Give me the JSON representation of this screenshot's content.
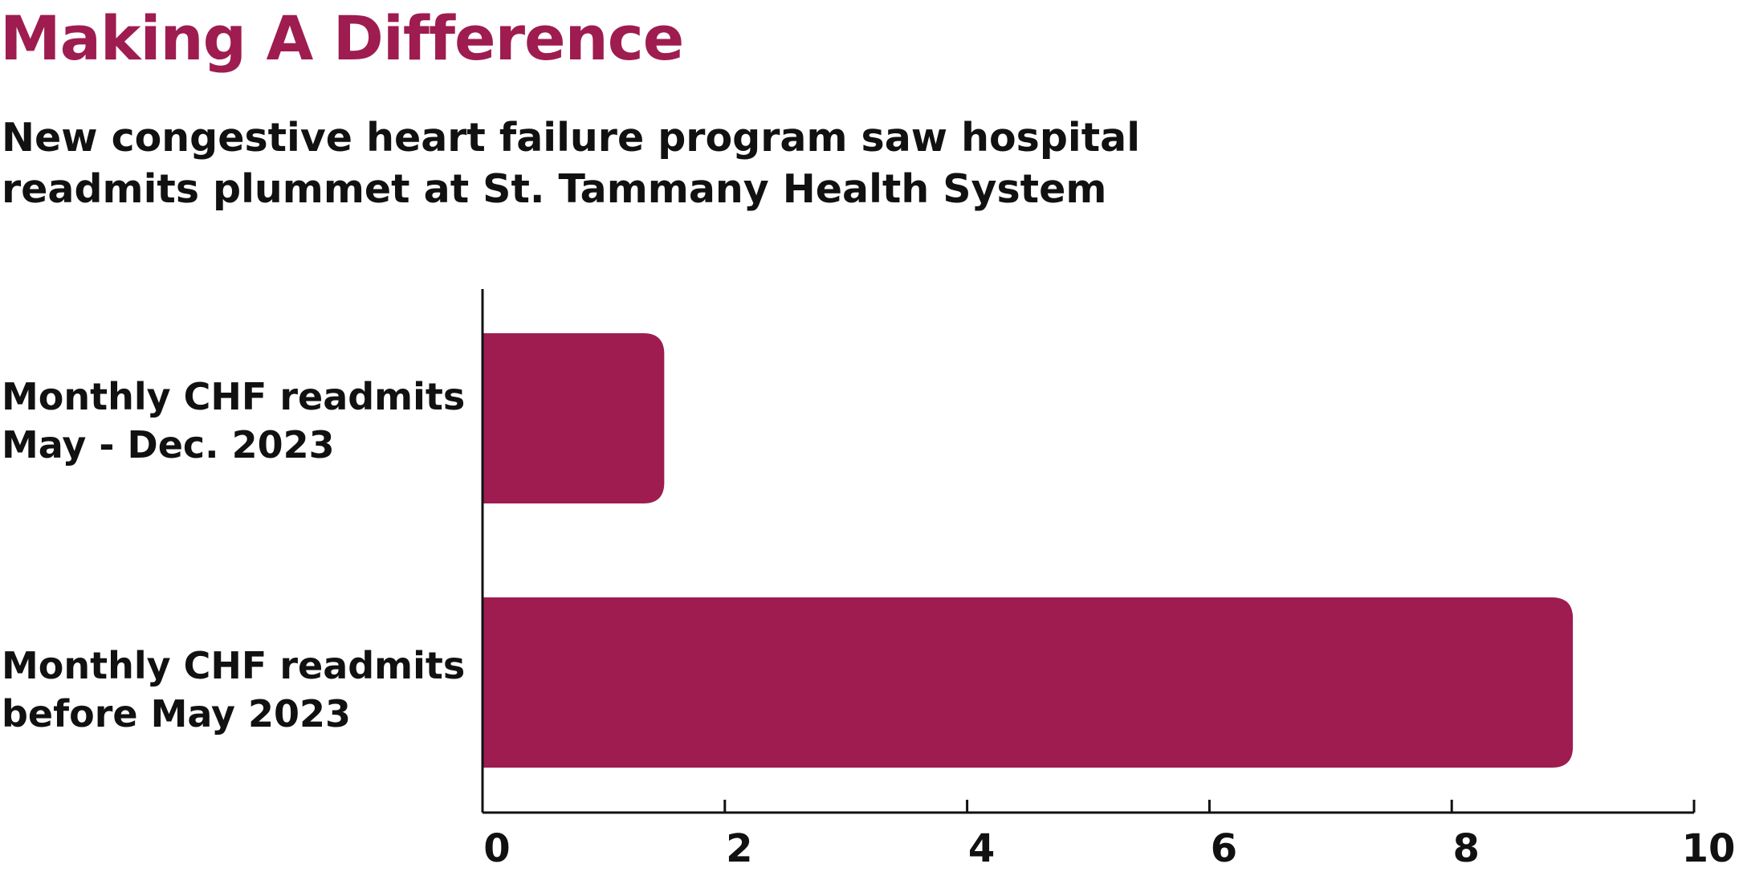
{
  "chart_data": {
    "type": "bar",
    "orientation": "horizontal",
    "title": "Making A Difference",
    "subtitle_lines": [
      "New congestive heart failure program saw hospital",
      "readmits plummet at St. Tammany Health System"
    ],
    "categories": [
      {
        "lines": [
          "Monthly CHF readmits",
          "May - Dec. 2023"
        ],
        "value": 1.5
      },
      {
        "lines": [
          "Monthly CHF readmits",
          "before May 2023"
        ],
        "value": 9
      }
    ],
    "xlim": [
      0,
      10
    ],
    "x_ticks": [
      "0",
      "2",
      "4",
      "6",
      "8",
      "10"
    ],
    "grid": false,
    "bar_color": "#9e1c50",
    "text_color": "#111111"
  }
}
